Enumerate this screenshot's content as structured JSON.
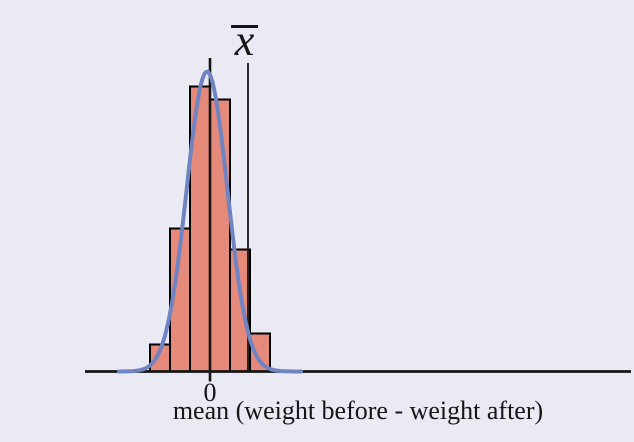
{
  "chart_data": {
    "type": "histogram",
    "title": "",
    "xlabel": "mean (weight before - weight after)",
    "ylabel": "",
    "grid": false,
    "legend": false,
    "x_ticks": [
      {
        "value": 0,
        "label": "0"
      }
    ],
    "bins": {
      "bin_width": 1,
      "edges": [
        -3,
        -2,
        -1,
        0,
        1,
        2,
        3
      ],
      "heights": [
        27,
        143,
        285,
        272,
        122,
        38
      ],
      "heights_note": "relative frequency, arbitrary units (y-axis not labeled in figure)"
    },
    "normal_curve": {
      "mean": -0.15,
      "sd": 1.02,
      "peak": 300,
      "x_min": -4.55,
      "x_max": 4.55
    },
    "zero_line": {
      "x": 0
    },
    "xbar_marker": {
      "x": 1.9,
      "label": "x",
      "overline": true
    },
    "colors": {
      "bar_fill": "#e5897b",
      "bar_stroke": "#000000",
      "curve": "#7084c1",
      "axis": "#161616",
      "text": "#161616",
      "background": "#e9eaf3"
    }
  }
}
